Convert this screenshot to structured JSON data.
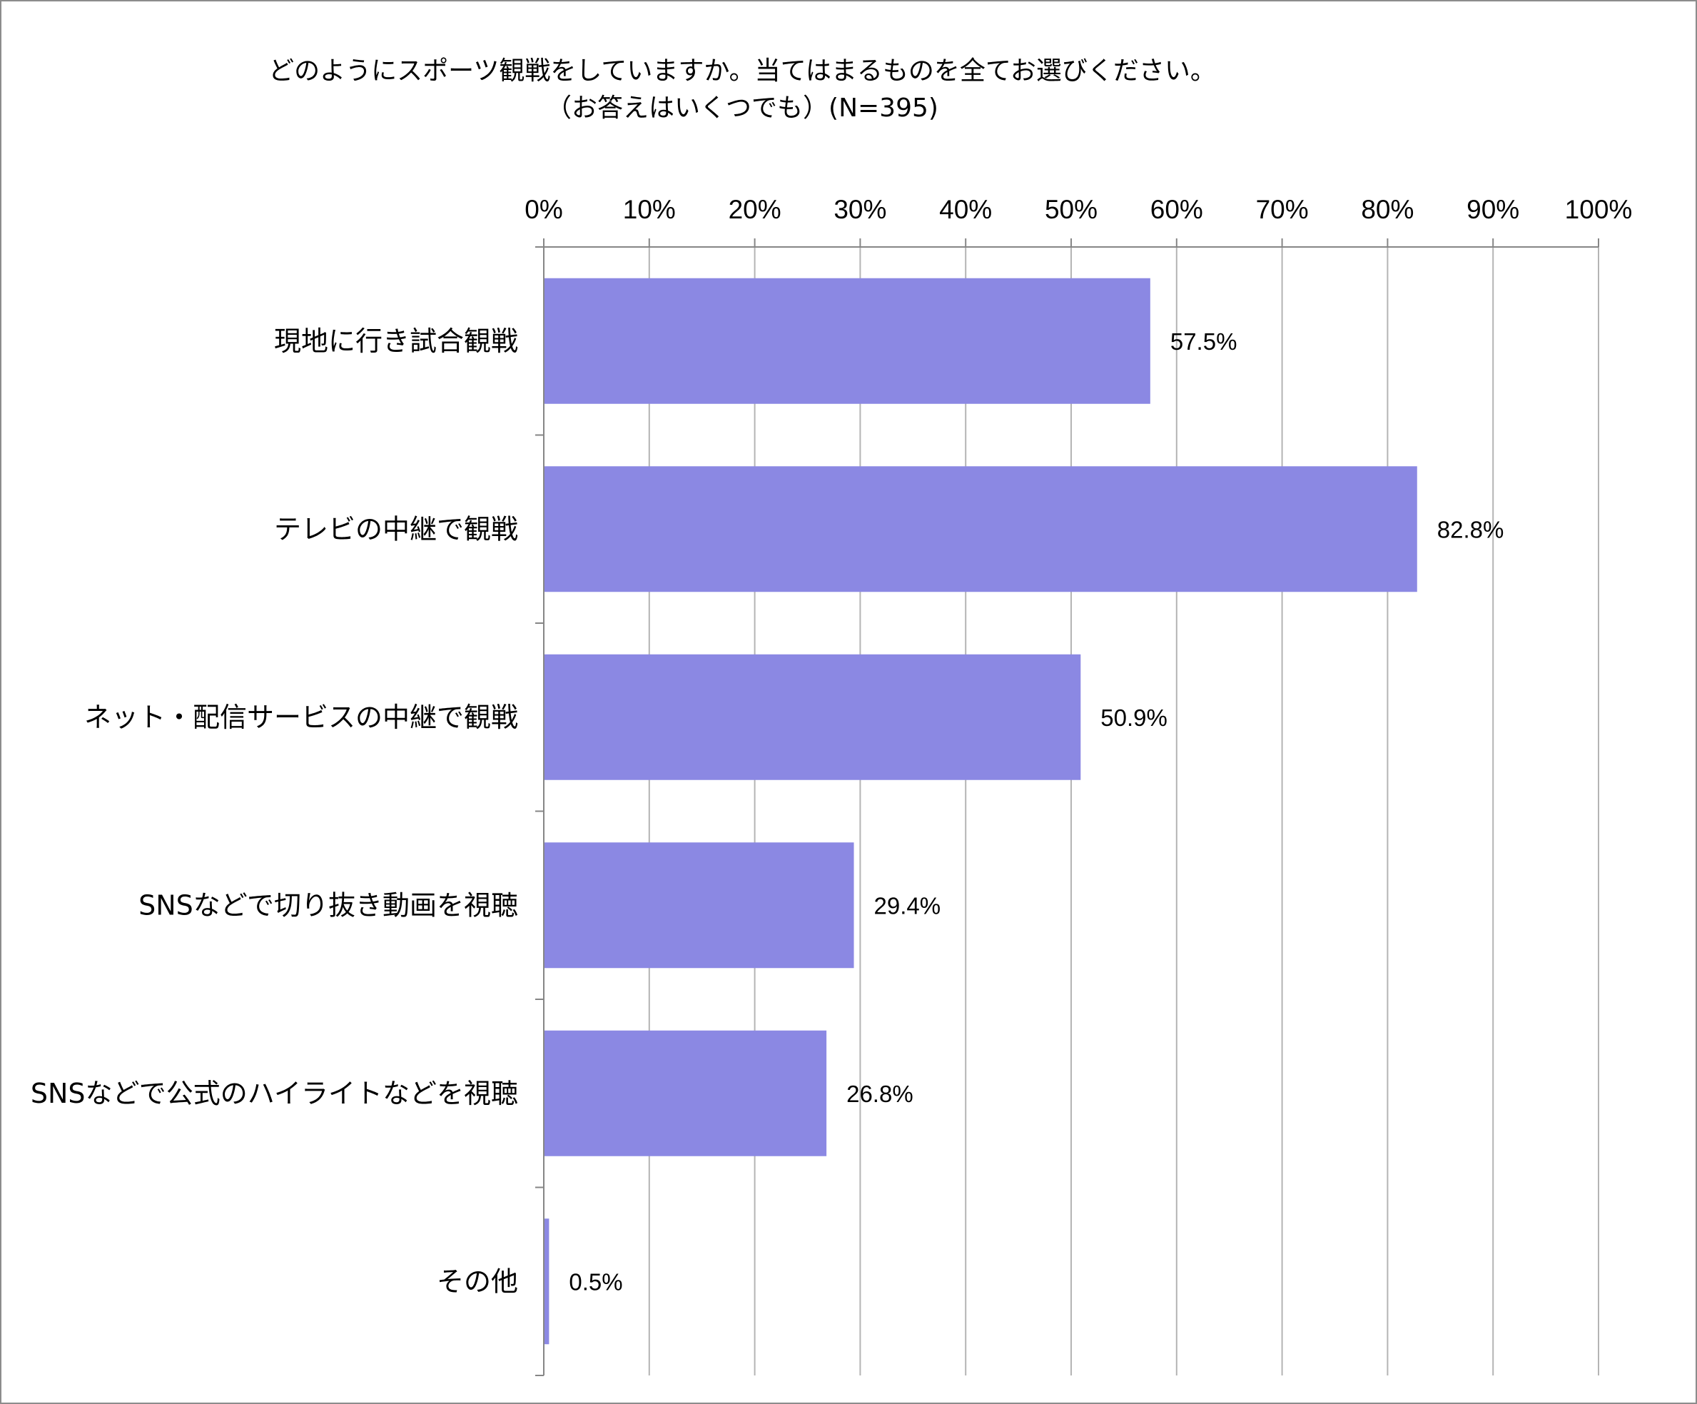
{
  "chart_data": {
    "type": "bar",
    "orientation": "horizontal",
    "title": "どのようにスポーツ観戦をしていますか。当てはまるものを全てお選びください。",
    "subtitle": "（お答えはいくつでも）(N=395)",
    "categories": [
      "現地に行き試合観戦",
      "テレビの中継で観戦",
      "ネット・配信サービスの中継で観戦",
      "SNSなどで切り抜き動画を視聴",
      "SNSなどで公式のハイライトなどを視聴",
      "その他"
    ],
    "values": [
      57.5,
      82.8,
      50.9,
      29.4,
      26.8,
      0.5
    ],
    "value_labels": [
      "57.5%",
      "82.8%",
      "50.9%",
      "29.4%",
      "26.8%",
      "0.5%"
    ],
    "x_ticks": [
      "0%",
      "10%",
      "20%",
      "30%",
      "40%",
      "50%",
      "60%",
      "70%",
      "80%",
      "90%",
      "100%"
    ],
    "xlim": [
      0,
      100
    ],
    "x_axis_position": "top",
    "grid": true,
    "legend": "none",
    "bar_color": "#8b88e3",
    "grid_color": "#b4b4b4",
    "axis_color": "#868686"
  }
}
